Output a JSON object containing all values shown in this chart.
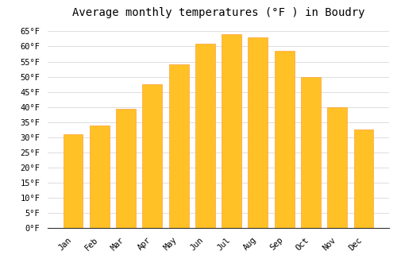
{
  "title": "Average monthly temperatures (°F ) in Boudry",
  "months": [
    "Jan",
    "Feb",
    "Mar",
    "Apr",
    "May",
    "Jun",
    "Jul",
    "Aug",
    "Sep",
    "Oct",
    "Nov",
    "Dec"
  ],
  "values": [
    31,
    34,
    39.5,
    47.5,
    54,
    61,
    64,
    63,
    58.5,
    50,
    40,
    32.5
  ],
  "bar_color_face": "#FFC125",
  "bar_color_edge": "#FFA040",
  "background_color": "#FFFFFF",
  "plot_bg_color": "#FFFFFF",
  "grid_color": "#DDDDDD",
  "ylim": [
    0,
    68
  ],
  "yticks": [
    0,
    5,
    10,
    15,
    20,
    25,
    30,
    35,
    40,
    45,
    50,
    55,
    60,
    65
  ],
  "title_fontsize": 10,
  "tick_fontsize": 7.5,
  "title_font": "monospace",
  "tick_font": "monospace",
  "bar_width": 0.75
}
